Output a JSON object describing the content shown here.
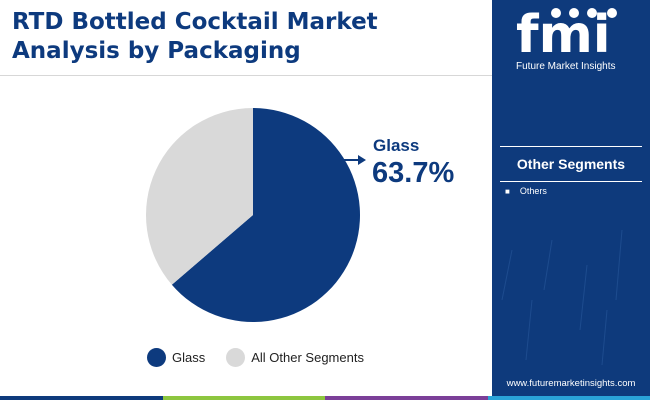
{
  "header": {
    "title_lines": [
      "RTD Bottled Cocktail Market",
      "Analysis by Packaging"
    ]
  },
  "chart_data": {
    "type": "pie",
    "title": "RTD Bottled Cocktail Market Analysis by Packaging",
    "slices": [
      {
        "label": "Glass",
        "value": 63.7,
        "color": "#0d3a7e"
      },
      {
        "label": "All Other Segments",
        "value": 36.3,
        "color": "#d9d9d9"
      }
    ],
    "start_angle_deg": 0,
    "direction": "clockwise",
    "callout": {
      "label": "Glass",
      "value_text": "63.7%"
    },
    "legend": {
      "placement": "bottom",
      "items": [
        {
          "label": "Glass",
          "color": "#0d3a7e"
        },
        {
          "label": "All Other Segments",
          "color": "#d9d9d9"
        }
      ]
    }
  },
  "sidebar": {
    "logo_text": "fmi",
    "logo_caption": "Future Market Insights",
    "segments_title": "Other Segments",
    "segments": [
      "Others"
    ],
    "url": "www.futuremarketinsights.com",
    "background": "#0e3a7c"
  },
  "footer": {
    "colors": [
      "#0e3a7c",
      "#8dc63f",
      "#7b3f98",
      "#2aa3d8"
    ]
  }
}
